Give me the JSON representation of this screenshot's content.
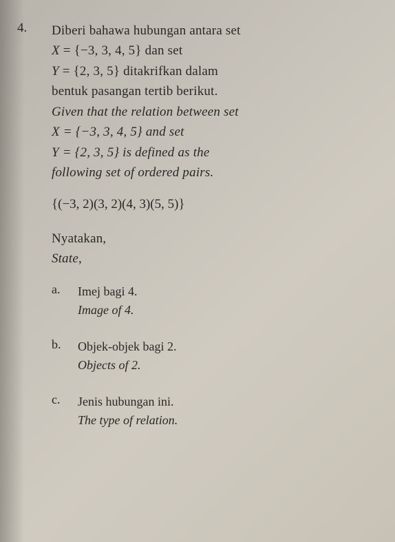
{
  "question": {
    "number": "4.",
    "lines": [
      {
        "text": "Diberi bahawa hubungan antara set",
        "italic": false
      },
      {
        "text": "X = {−3, 3, 4, 5} dan set",
        "italic": false,
        "math": true
      },
      {
        "text": "Y = {2, 3, 5} ditakrifkan dalam",
        "italic": false,
        "math": true
      },
      {
        "text": "bentuk pasangan tertib berikut.",
        "italic": false
      },
      {
        "text": "Given that the relation between set",
        "italic": true
      },
      {
        "text": "X = {−3, 3, 4, 5} and set",
        "italic": true,
        "math": true
      },
      {
        "text": "Y = {2, 3, 5} is defined as the",
        "italic": true,
        "math": true
      },
      {
        "text": "following set of ordered pairs.",
        "italic": true
      }
    ],
    "ordered_pairs": "{(−3, 2)(3, 2)(4, 3)(5, 5)}",
    "state": {
      "malay": "Nyatakan,",
      "english": "State,"
    },
    "subitems": [
      {
        "letter": "a.",
        "malay": "Imej bagi 4.",
        "english": "Image of 4."
      },
      {
        "letter": "b.",
        "malay": "Objek-objek bagi 2.",
        "english": "Objects of 2."
      },
      {
        "letter": "c.",
        "malay": "Jenis hubungan ini.",
        "english": "The type of relation."
      }
    ]
  },
  "style": {
    "background_gradient": [
      "#b8b4ac",
      "#c5c0b7",
      "#d0cbc1",
      "#c8c2b6"
    ],
    "text_color": "#2a2824",
    "body_fontsize": 19,
    "sub_fontsize": 18,
    "line_height": 1.55,
    "font_family": "Georgia, 'Times New Roman', serif"
  }
}
